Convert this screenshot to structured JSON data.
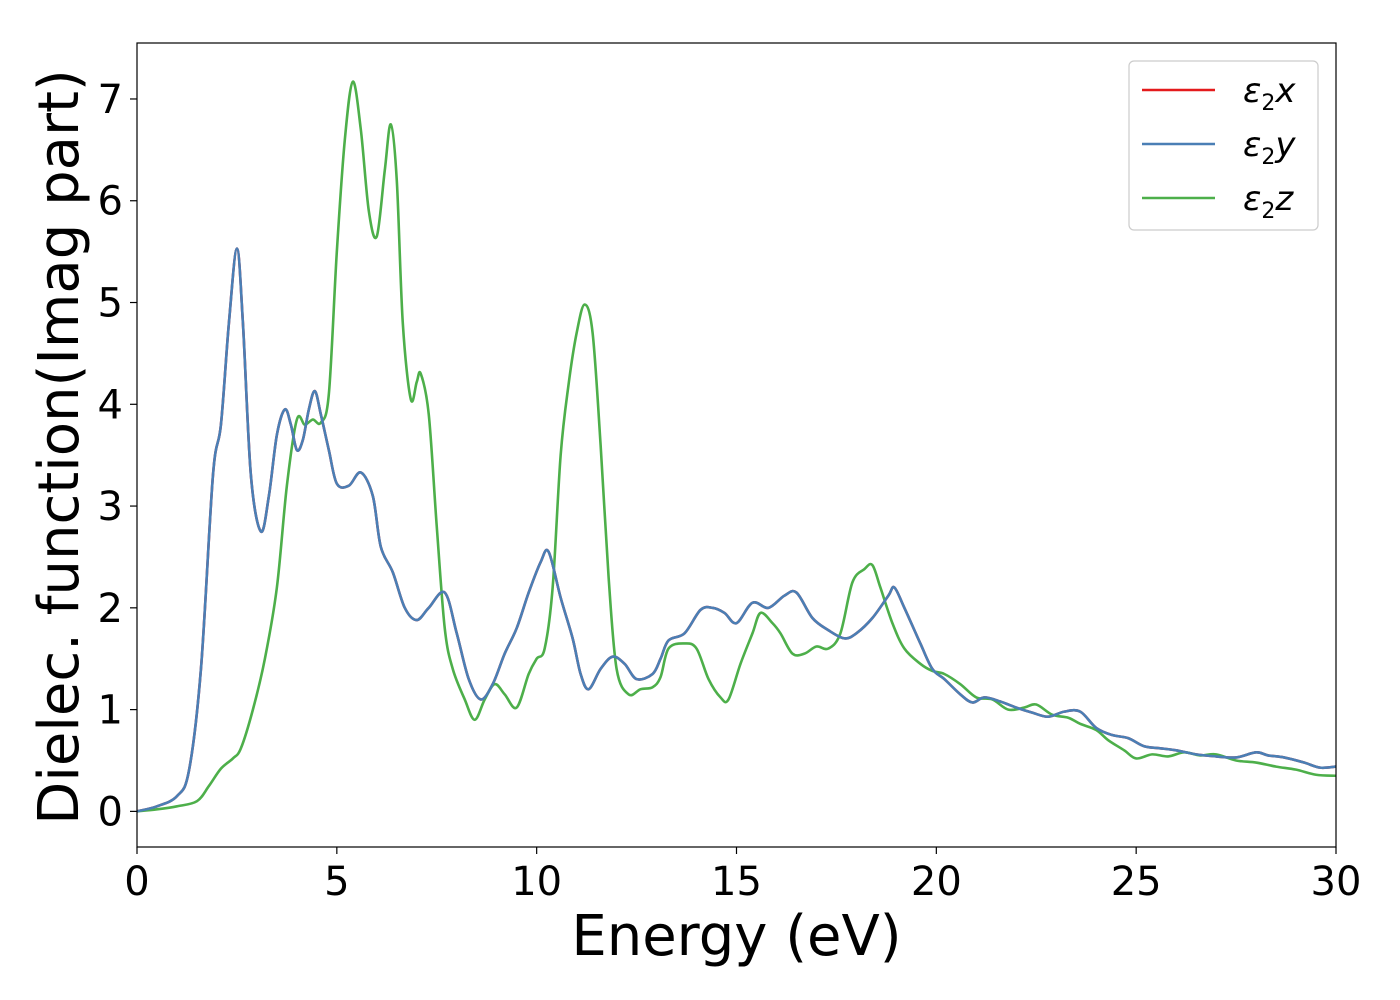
{
  "chart_data": {
    "type": "line",
    "xlabel": "Energy (eV)",
    "ylabel": "Dielec. function(Imag part)",
    "xlim": [
      0,
      30
    ],
    "ylim": [
      -0.35,
      7.55
    ],
    "xticks": [
      0,
      5,
      10,
      15,
      20,
      25,
      30
    ],
    "yticks": [
      0,
      1,
      2,
      3,
      4,
      5,
      6,
      7
    ],
    "grid": false,
    "legend_position": "top-right",
    "series": [
      {
        "name": "ε2x",
        "legend_base": "ε",
        "legend_sub": "2",
        "legend_var": "x",
        "color": "#e41a1c",
        "points": [
          [
            0,
            0.0
          ],
          [
            0.5,
            0.05
          ],
          [
            1.0,
            0.15
          ],
          [
            1.3,
            0.4
          ],
          [
            1.6,
            1.4
          ],
          [
            1.9,
            3.3
          ],
          [
            2.1,
            3.8
          ],
          [
            2.3,
            4.8
          ],
          [
            2.5,
            5.53
          ],
          [
            2.65,
            4.8
          ],
          [
            2.85,
            3.3
          ],
          [
            3.1,
            2.75
          ],
          [
            3.3,
            3.1
          ],
          [
            3.5,
            3.7
          ],
          [
            3.7,
            3.95
          ],
          [
            3.85,
            3.8
          ],
          [
            4.0,
            3.55
          ],
          [
            4.15,
            3.65
          ],
          [
            4.3,
            3.95
          ],
          [
            4.45,
            4.13
          ],
          [
            4.6,
            3.9
          ],
          [
            4.8,
            3.55
          ],
          [
            5.0,
            3.22
          ],
          [
            5.3,
            3.2
          ],
          [
            5.6,
            3.33
          ],
          [
            5.9,
            3.1
          ],
          [
            6.1,
            2.6
          ],
          [
            6.4,
            2.35
          ],
          [
            6.7,
            2.0
          ],
          [
            7.0,
            1.88
          ],
          [
            7.3,
            2.0
          ],
          [
            7.7,
            2.15
          ],
          [
            8.0,
            1.75
          ],
          [
            8.3,
            1.3
          ],
          [
            8.6,
            1.1
          ],
          [
            8.9,
            1.25
          ],
          [
            9.2,
            1.55
          ],
          [
            9.5,
            1.8
          ],
          [
            9.8,
            2.15
          ],
          [
            10.1,
            2.45
          ],
          [
            10.3,
            2.55
          ],
          [
            10.6,
            2.1
          ],
          [
            10.9,
            1.7
          ],
          [
            11.1,
            1.35
          ],
          [
            11.3,
            1.2
          ],
          [
            11.6,
            1.4
          ],
          [
            11.9,
            1.52
          ],
          [
            12.2,
            1.45
          ],
          [
            12.5,
            1.3
          ],
          [
            12.9,
            1.35
          ],
          [
            13.1,
            1.5
          ],
          [
            13.3,
            1.68
          ],
          [
            13.7,
            1.75
          ],
          [
            14.1,
            1.98
          ],
          [
            14.4,
            2.0
          ],
          [
            14.7,
            1.95
          ],
          [
            15.0,
            1.85
          ],
          [
            15.4,
            2.05
          ],
          [
            15.8,
            2.0
          ],
          [
            16.2,
            2.12
          ],
          [
            16.5,
            2.15
          ],
          [
            16.9,
            1.9
          ],
          [
            17.3,
            1.78
          ],
          [
            17.7,
            1.7
          ],
          [
            18.0,
            1.75
          ],
          [
            18.4,
            1.9
          ],
          [
            18.8,
            2.12
          ],
          [
            18.95,
            2.2
          ],
          [
            19.2,
            2.0
          ],
          [
            19.6,
            1.65
          ],
          [
            19.9,
            1.4
          ],
          [
            20.2,
            1.3
          ],
          [
            20.6,
            1.15
          ],
          [
            20.9,
            1.07
          ],
          [
            21.2,
            1.12
          ],
          [
            21.6,
            1.08
          ],
          [
            22.0,
            1.02
          ],
          [
            22.4,
            0.97
          ],
          [
            22.8,
            0.93
          ],
          [
            23.2,
            0.98
          ],
          [
            23.6,
            0.98
          ],
          [
            24.0,
            0.82
          ],
          [
            24.4,
            0.75
          ],
          [
            24.8,
            0.72
          ],
          [
            25.2,
            0.64
          ],
          [
            25.6,
            0.62
          ],
          [
            26.0,
            0.6
          ],
          [
            26.5,
            0.56
          ],
          [
            27.0,
            0.54
          ],
          [
            27.5,
            0.53
          ],
          [
            28.0,
            0.58
          ],
          [
            28.3,
            0.55
          ],
          [
            28.7,
            0.53
          ],
          [
            29.2,
            0.48
          ],
          [
            29.6,
            0.43
          ],
          [
            30.0,
            0.44
          ]
        ]
      },
      {
        "name": "ε2y",
        "legend_base": "ε",
        "legend_sub": "2",
        "legend_var": "y",
        "color": "#4a7fb5",
        "points": [
          [
            0,
            0.0
          ],
          [
            0.5,
            0.05
          ],
          [
            1.0,
            0.15
          ],
          [
            1.3,
            0.4
          ],
          [
            1.6,
            1.4
          ],
          [
            1.9,
            3.3
          ],
          [
            2.1,
            3.8
          ],
          [
            2.3,
            4.8
          ],
          [
            2.5,
            5.53
          ],
          [
            2.65,
            4.8
          ],
          [
            2.85,
            3.3
          ],
          [
            3.1,
            2.75
          ],
          [
            3.3,
            3.1
          ],
          [
            3.5,
            3.7
          ],
          [
            3.7,
            3.95
          ],
          [
            3.85,
            3.8
          ],
          [
            4.0,
            3.55
          ],
          [
            4.15,
            3.65
          ],
          [
            4.3,
            3.95
          ],
          [
            4.45,
            4.13
          ],
          [
            4.6,
            3.9
          ],
          [
            4.8,
            3.55
          ],
          [
            5.0,
            3.22
          ],
          [
            5.3,
            3.2
          ],
          [
            5.6,
            3.33
          ],
          [
            5.9,
            3.1
          ],
          [
            6.1,
            2.6
          ],
          [
            6.4,
            2.35
          ],
          [
            6.7,
            2.0
          ],
          [
            7.0,
            1.88
          ],
          [
            7.3,
            2.0
          ],
          [
            7.7,
            2.15
          ],
          [
            8.0,
            1.75
          ],
          [
            8.3,
            1.3
          ],
          [
            8.6,
            1.1
          ],
          [
            8.9,
            1.25
          ],
          [
            9.2,
            1.55
          ],
          [
            9.5,
            1.8
          ],
          [
            9.8,
            2.15
          ],
          [
            10.1,
            2.45
          ],
          [
            10.3,
            2.55
          ],
          [
            10.6,
            2.1
          ],
          [
            10.9,
            1.7
          ],
          [
            11.1,
            1.35
          ],
          [
            11.3,
            1.2
          ],
          [
            11.6,
            1.4
          ],
          [
            11.9,
            1.52
          ],
          [
            12.2,
            1.45
          ],
          [
            12.5,
            1.3
          ],
          [
            12.9,
            1.35
          ],
          [
            13.1,
            1.5
          ],
          [
            13.3,
            1.68
          ],
          [
            13.7,
            1.75
          ],
          [
            14.1,
            1.98
          ],
          [
            14.4,
            2.0
          ],
          [
            14.7,
            1.95
          ],
          [
            15.0,
            1.85
          ],
          [
            15.4,
            2.05
          ],
          [
            15.8,
            2.0
          ],
          [
            16.2,
            2.12
          ],
          [
            16.5,
            2.15
          ],
          [
            16.9,
            1.9
          ],
          [
            17.3,
            1.78
          ],
          [
            17.7,
            1.7
          ],
          [
            18.0,
            1.75
          ],
          [
            18.4,
            1.9
          ],
          [
            18.8,
            2.12
          ],
          [
            18.95,
            2.2
          ],
          [
            19.2,
            2.0
          ],
          [
            19.6,
            1.65
          ],
          [
            19.9,
            1.4
          ],
          [
            20.2,
            1.3
          ],
          [
            20.6,
            1.15
          ],
          [
            20.9,
            1.07
          ],
          [
            21.2,
            1.12
          ],
          [
            21.6,
            1.08
          ],
          [
            22.0,
            1.02
          ],
          [
            22.4,
            0.97
          ],
          [
            22.8,
            0.93
          ],
          [
            23.2,
            0.98
          ],
          [
            23.6,
            0.98
          ],
          [
            24.0,
            0.82
          ],
          [
            24.4,
            0.75
          ],
          [
            24.8,
            0.72
          ],
          [
            25.2,
            0.64
          ],
          [
            25.6,
            0.62
          ],
          [
            26.0,
            0.6
          ],
          [
            26.5,
            0.56
          ],
          [
            27.0,
            0.54
          ],
          [
            27.5,
            0.53
          ],
          [
            28.0,
            0.58
          ],
          [
            28.3,
            0.55
          ],
          [
            28.7,
            0.53
          ],
          [
            29.2,
            0.48
          ],
          [
            29.6,
            0.43
          ],
          [
            30.0,
            0.44
          ]
        ]
      },
      {
        "name": "ε2z",
        "legend_base": "ε",
        "legend_sub": "2",
        "legend_var": "z",
        "color": "#4daf4a",
        "points": [
          [
            0,
            0.0
          ],
          [
            0.5,
            0.02
          ],
          [
            1.0,
            0.05
          ],
          [
            1.5,
            0.1
          ],
          [
            1.8,
            0.25
          ],
          [
            2.1,
            0.42
          ],
          [
            2.4,
            0.52
          ],
          [
            2.6,
            0.62
          ],
          [
            2.9,
            1.0
          ],
          [
            3.2,
            1.5
          ],
          [
            3.5,
            2.2
          ],
          [
            3.75,
            3.2
          ],
          [
            4.0,
            3.85
          ],
          [
            4.2,
            3.8
          ],
          [
            4.4,
            3.85
          ],
          [
            4.6,
            3.82
          ],
          [
            4.8,
            4.1
          ],
          [
            5.0,
            5.5
          ],
          [
            5.2,
            6.6
          ],
          [
            5.4,
            7.17
          ],
          [
            5.6,
            6.7
          ],
          [
            5.8,
            5.9
          ],
          [
            6.0,
            5.65
          ],
          [
            6.2,
            6.3
          ],
          [
            6.35,
            6.75
          ],
          [
            6.5,
            6.2
          ],
          [
            6.65,
            4.8
          ],
          [
            6.85,
            4.05
          ],
          [
            7.0,
            4.22
          ],
          [
            7.1,
            4.3
          ],
          [
            7.3,
            3.9
          ],
          [
            7.5,
            2.8
          ],
          [
            7.7,
            1.8
          ],
          [
            7.9,
            1.4
          ],
          [
            8.2,
            1.1
          ],
          [
            8.45,
            0.9
          ],
          [
            8.7,
            1.1
          ],
          [
            8.95,
            1.25
          ],
          [
            9.2,
            1.15
          ],
          [
            9.5,
            1.02
          ],
          [
            9.8,
            1.35
          ],
          [
            10.0,
            1.5
          ],
          [
            10.2,
            1.6
          ],
          [
            10.4,
            2.2
          ],
          [
            10.6,
            3.5
          ],
          [
            10.8,
            4.2
          ],
          [
            11.0,
            4.7
          ],
          [
            11.2,
            4.98
          ],
          [
            11.4,
            4.7
          ],
          [
            11.6,
            3.6
          ],
          [
            11.8,
            2.3
          ],
          [
            12.0,
            1.4
          ],
          [
            12.3,
            1.15
          ],
          [
            12.6,
            1.2
          ],
          [
            12.9,
            1.22
          ],
          [
            13.1,
            1.32
          ],
          [
            13.3,
            1.6
          ],
          [
            13.7,
            1.65
          ],
          [
            14.0,
            1.6
          ],
          [
            14.3,
            1.3
          ],
          [
            14.6,
            1.12
          ],
          [
            14.8,
            1.1
          ],
          [
            15.1,
            1.45
          ],
          [
            15.4,
            1.75
          ],
          [
            15.6,
            1.95
          ],
          [
            15.9,
            1.85
          ],
          [
            16.1,
            1.75
          ],
          [
            16.4,
            1.55
          ],
          [
            16.7,
            1.55
          ],
          [
            17.0,
            1.62
          ],
          [
            17.3,
            1.6
          ],
          [
            17.6,
            1.75
          ],
          [
            17.9,
            2.25
          ],
          [
            18.2,
            2.38
          ],
          [
            18.4,
            2.42
          ],
          [
            18.6,
            2.2
          ],
          [
            18.9,
            1.85
          ],
          [
            19.2,
            1.6
          ],
          [
            19.6,
            1.45
          ],
          [
            19.9,
            1.38
          ],
          [
            20.2,
            1.35
          ],
          [
            20.6,
            1.25
          ],
          [
            21.0,
            1.12
          ],
          [
            21.4,
            1.1
          ],
          [
            21.8,
            1.0
          ],
          [
            22.2,
            1.02
          ],
          [
            22.5,
            1.05
          ],
          [
            22.9,
            0.95
          ],
          [
            23.3,
            0.92
          ],
          [
            23.6,
            0.86
          ],
          [
            24.0,
            0.8
          ],
          [
            24.3,
            0.7
          ],
          [
            24.7,
            0.6
          ],
          [
            25.0,
            0.52
          ],
          [
            25.4,
            0.56
          ],
          [
            25.8,
            0.54
          ],
          [
            26.2,
            0.58
          ],
          [
            26.6,
            0.55
          ],
          [
            27.0,
            0.56
          ],
          [
            27.5,
            0.5
          ],
          [
            28.0,
            0.48
          ],
          [
            28.5,
            0.44
          ],
          [
            29.0,
            0.41
          ],
          [
            29.5,
            0.36
          ],
          [
            30.0,
            0.35
          ]
        ]
      }
    ]
  }
}
